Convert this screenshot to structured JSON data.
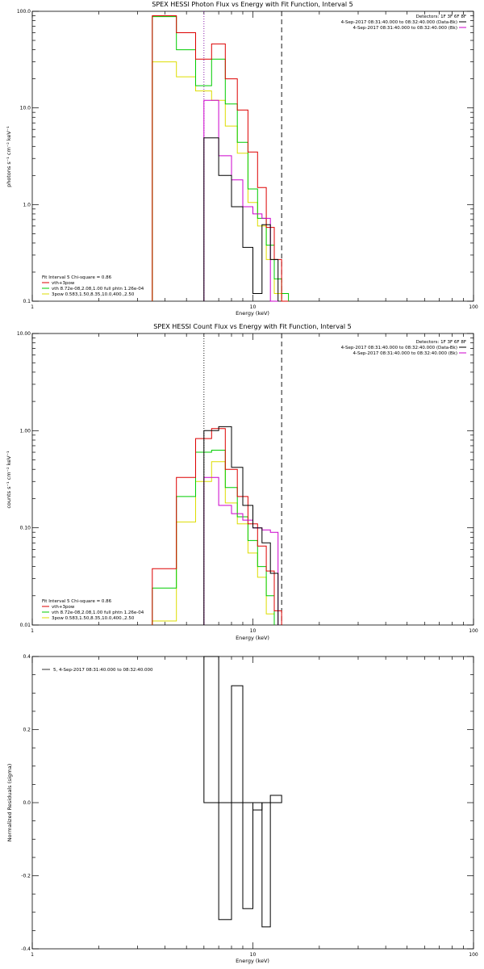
{
  "chart_data": [
    {
      "type": "line",
      "title": "SPEX HESSI Photon Flux vs Energy with Fit Function, Interval 5",
      "xlabel": "Energy (keV)",
      "ylabel": "photons s⁻¹ cm⁻² keV⁻¹",
      "xscale": "log",
      "yscale": "log",
      "xlim": [
        1,
        100
      ],
      "ylim": [
        0.1,
        100
      ],
      "xticks": [
        "1",
        "10",
        "100"
      ],
      "yticks": [
        "0.1",
        "1.0",
        "10.0",
        "100.0"
      ],
      "vlines": [
        {
          "x": 6.0,
          "style": "dotted",
          "color": "#7a00a0"
        },
        {
          "x": 13.5,
          "style": "dashed",
          "color": "#000000"
        }
      ],
      "info_right": [
        "Detectors: 1F 3F 6F 8F",
        "4-Sep-2017 08:31:40.000 to 08:32:40.000 (Data-Bk)",
        "4-Sep-2017 08:31:40.000 to 08:32:40.000 (Bk)"
      ],
      "info_right_colors": [
        "",
        "#000000",
        "#cc00cc"
      ],
      "legend_lines": [
        {
          "text": "Fit Interval 5   Chi-square = 0.86",
          "color": ""
        },
        {
          "text": "vth+3pow",
          "color": "#dd0000"
        },
        {
          "text": "vth 8.72e-08,2.08,1.00  full phtn 1.26e-04",
          "color": "#00cc00"
        },
        {
          "text": "3pow 0.583,1.50,8.35,10.0,400.,2.50",
          "color": "#dddd00"
        }
      ],
      "edges": [
        3.5,
        4.0,
        4.5,
        5.0,
        5.5,
        6.0,
        6.5,
        7.0,
        7.5,
        8.0,
        8.5,
        9.0,
        9.5,
        10.0,
        10.5,
        11.0,
        11.5,
        12.0,
        12.5,
        13.0,
        13.5,
        14.5
      ],
      "series": [
        {
          "color": "#000000",
          "values": [
            null,
            null,
            null,
            null,
            null,
            4.9,
            4.9,
            2.0,
            2.0,
            0.95,
            0.95,
            0.36,
            0.36,
            0.12,
            0.12,
            0.62,
            0.62,
            0.27,
            0.27,
            null,
            null
          ]
        },
        {
          "color": "#dd0000",
          "values": [
            90,
            90,
            60,
            60,
            32,
            32,
            46,
            46,
            20,
            20,
            9.5,
            9.5,
            3.5,
            3.5,
            1.5,
            1.5,
            0.58,
            0.58,
            0.27,
            0.27,
            0.1
          ]
        },
        {
          "color": "#00cc00",
          "values": [
            88,
            88,
            40,
            40,
            17,
            17,
            32,
            32,
            11,
            11,
            4.4,
            4.4,
            1.45,
            1.45,
            0.72,
            0.72,
            0.38,
            0.38,
            0.17,
            0.17,
            0.12
          ]
        },
        {
          "color": "#dddd00",
          "values": [
            30,
            30,
            21,
            21,
            15,
            15,
            12,
            12,
            6.5,
            6.5,
            3.4,
            3.4,
            1.05,
            1.05,
            0.6,
            0.6,
            0.27,
            0.27,
            0.12,
            0.12,
            null
          ]
        },
        {
          "color": "#cc00cc",
          "values": [
            null,
            null,
            null,
            null,
            null,
            12,
            12,
            3.2,
            3.2,
            1.8,
            1.8,
            0.95,
            0.95,
            0.8,
            0.8,
            0.72,
            0.72,
            0.1,
            0.1,
            null,
            null
          ]
        }
      ]
    },
    {
      "type": "line",
      "title": "SPEX HESSI Count Flux vs Energy with Fit Function, Interval 5",
      "xlabel": "Energy (keV)",
      "ylabel": "counts s⁻¹ cm⁻² keV⁻¹",
      "xscale": "log",
      "yscale": "log",
      "xlim": [
        1,
        100
      ],
      "ylim": [
        0.01,
        10
      ],
      "xticks": [
        "1",
        "10",
        "100"
      ],
      "yticks": [
        "0.01",
        "0.10",
        "1.00",
        "10.00"
      ],
      "vlines": [
        {
          "x": 6.0,
          "style": "dotted",
          "color": "#000000"
        },
        {
          "x": 13.5,
          "style": "dashed",
          "color": "#000000"
        }
      ],
      "info_right": [
        "Detectors: 1F 3F 6F 8F",
        "4-Sep-2017 08:31:40.000 to 08:32:40.000 (Data-Bk)",
        "4-Sep-2017 08:31:40.000 to 08:32:40.000 (Bk)"
      ],
      "info_right_colors": [
        "",
        "#000000",
        "#cc00cc"
      ],
      "legend_lines": [
        {
          "text": "Fit Interval 5   Chi-square = 0.86",
          "color": ""
        },
        {
          "text": "vth+3pow",
          "color": "#dd0000"
        },
        {
          "text": "vth 8.72e-08,2.08,1.00  full phtn 1.26e-04",
          "color": "#00cc00"
        },
        {
          "text": "3pow 0.583,1.50,8.35,10.0,400.,2.50",
          "color": "#dddd00"
        }
      ],
      "edges": [
        3.5,
        4.0,
        4.5,
        5.0,
        5.5,
        6.0,
        6.5,
        7.0,
        7.5,
        8.0,
        8.5,
        9.0,
        9.5,
        10.0,
        10.5,
        11.0,
        11.5,
        12.0,
        12.5,
        13.0,
        13.5,
        14.5
      ],
      "series": [
        {
          "color": "#000000",
          "values": [
            null,
            null,
            null,
            null,
            null,
            1.0,
            1.0,
            1.1,
            1.1,
            0.42,
            0.42,
            0.17,
            0.17,
            0.1,
            0.1,
            0.07,
            0.07,
            0.034,
            0.034,
            null,
            null
          ]
        },
        {
          "color": "#dd0000",
          "values": [
            0.038,
            0.038,
            0.33,
            0.33,
            0.83,
            0.83,
            1.05,
            1.05,
            0.4,
            0.4,
            0.21,
            0.21,
            0.11,
            0.11,
            0.065,
            0.065,
            0.036,
            0.036,
            0.014,
            0.014,
            null
          ]
        },
        {
          "color": "#00cc00",
          "values": [
            0.024,
            0.024,
            0.21,
            0.21,
            0.6,
            0.6,
            0.63,
            0.63,
            0.26,
            0.26,
            0.13,
            0.13,
            0.074,
            0.074,
            0.04,
            0.04,
            0.02,
            0.02,
            null,
            null,
            null
          ]
        },
        {
          "color": "#dddd00",
          "values": [
            0.011,
            0.011,
            0.115,
            0.115,
            0.3,
            0.3,
            0.48,
            0.48,
            0.18,
            0.18,
            0.11,
            0.11,
            0.055,
            0.055,
            0.031,
            0.031,
            0.013,
            0.013,
            null,
            null,
            null
          ]
        },
        {
          "color": "#cc00cc",
          "values": [
            null,
            null,
            null,
            null,
            null,
            0.33,
            0.33,
            0.17,
            0.17,
            0.14,
            0.14,
            0.12,
            0.12,
            0.1,
            0.1,
            0.095,
            0.095,
            0.09,
            0.09,
            null,
            null
          ]
        }
      ]
    },
    {
      "type": "bar",
      "title": "",
      "xlabel": "Energy (keV)",
      "ylabel": "Normalized Residuals (sigma)",
      "xscale": "log",
      "xlim": [
        1,
        100
      ],
      "ylim": [
        -0.4,
        0.4
      ],
      "xticks": [
        "1",
        "10",
        "100"
      ],
      "yticks": [
        "-0.4",
        "-0.2",
        "0.0",
        "0.2",
        "0.4"
      ],
      "legend": "5,  4-Sep-2017 08:31:40.000 to 08:32:40.000",
      "edges": [
        6.0,
        7.0,
        8.0,
        9.0,
        10.0,
        11.0,
        12.0,
        13.5
      ],
      "values": [
        0.4,
        -0.32,
        0.32,
        -0.29,
        -0.02,
        -0.34,
        0.02
      ]
    }
  ]
}
